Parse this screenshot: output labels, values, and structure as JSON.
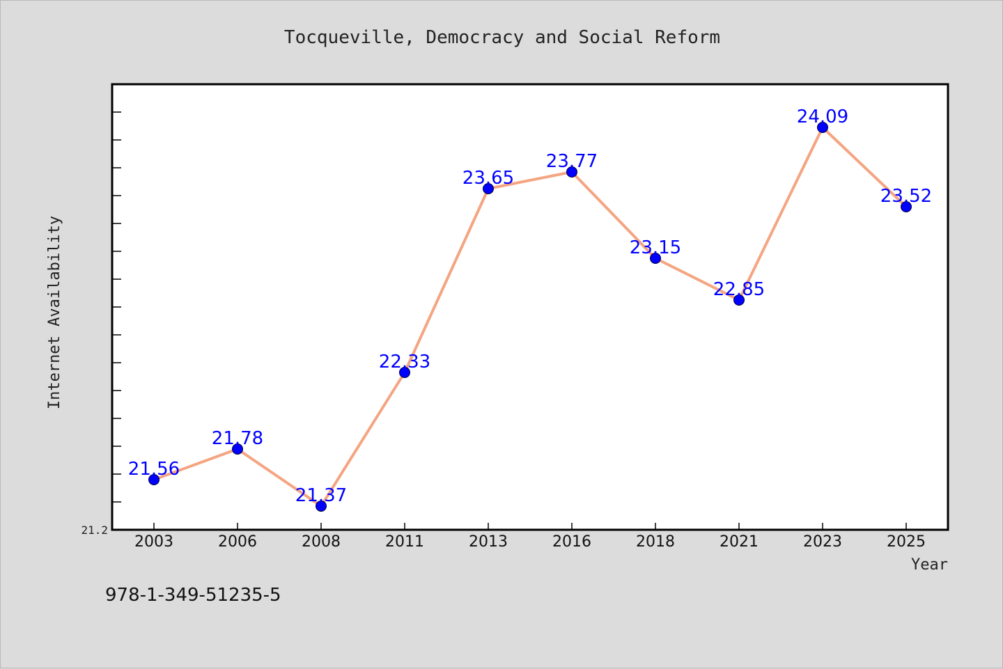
{
  "chart_data": {
    "type": "line",
    "title": "Tocqueville, Democracy and Social Reform",
    "xlabel": "Year",
    "ylabel": "Internet Availability",
    "categories": [
      "2003",
      "2006",
      "2008",
      "2011",
      "2013",
      "2016",
      "2018",
      "2021",
      "2023",
      "2025"
    ],
    "values": [
      21.56,
      21.78,
      21.37,
      22.33,
      23.65,
      23.77,
      23.15,
      22.85,
      24.09,
      23.52
    ],
    "data_labels": [
      "21.56",
      "21.78",
      "21.37",
      "22.33",
      "23.65",
      "23.77",
      "23.15",
      "22.85",
      "24.09",
      "23.52"
    ],
    "ylim": [
      21.2,
      24.4
    ],
    "y_tick_labels": [
      "21.2"
    ],
    "grid": false,
    "line_color": "#f4a582",
    "marker_color": "#0000ff",
    "label_color": "#0000ff"
  },
  "footer": {
    "id_text": "978-1-349-51235-5"
  }
}
